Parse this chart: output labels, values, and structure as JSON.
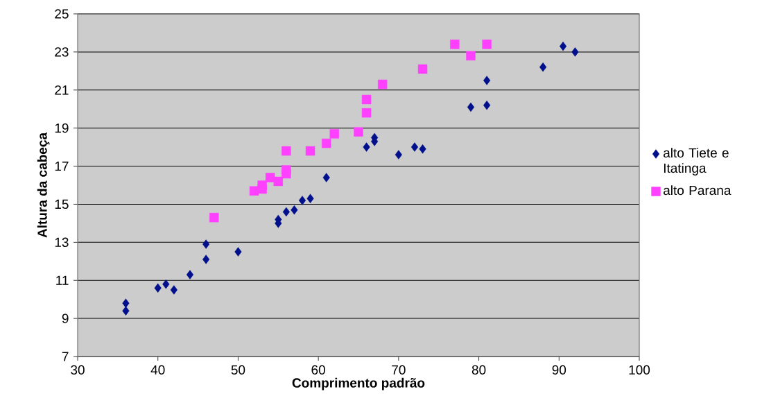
{
  "chart_data": {
    "type": "scatter",
    "xlabel": "Comprimento padrão",
    "ylabel": "Altura da cabeça",
    "xlim": [
      30,
      100
    ],
    "xticks": [
      30,
      40,
      50,
      60,
      70,
      80,
      90,
      100
    ],
    "ylim": [
      7,
      25
    ],
    "yticks": [
      7,
      9,
      11,
      13,
      15,
      17,
      19,
      21,
      23,
      25
    ],
    "grid": "y",
    "legend": "right",
    "series": [
      {
        "name": "alto Tiete e Itatinga",
        "color": "#000f8c",
        "marker": "diamond",
        "x": [
          36,
          36,
          40,
          41,
          42,
          44,
          46,
          46,
          50,
          55,
          55,
          56,
          57,
          58,
          59,
          61,
          66,
          67,
          67,
          70,
          72,
          73,
          79,
          81,
          81,
          88,
          90.5,
          92
        ],
        "values": [
          9.8,
          9.4,
          10.6,
          10.8,
          10.5,
          11.3,
          12.1,
          12.9,
          12.5,
          14.2,
          14.0,
          14.6,
          14.7,
          15.2,
          15.3,
          16.4,
          18.0,
          18.3,
          18.5,
          17.6,
          18.0,
          17.9,
          20.1,
          21.5,
          20.2,
          22.2,
          23.3,
          23.0
        ]
      },
      {
        "name": "alto Parana",
        "color": "#ff40ff",
        "marker": "square",
        "x": [
          47,
          52,
          53,
          53,
          54,
          55,
          56,
          56,
          56,
          59,
          61,
          62,
          65,
          66,
          66,
          68,
          73,
          77,
          79,
          81
        ],
        "values": [
          14.3,
          15.7,
          16.0,
          15.8,
          16.4,
          16.2,
          16.8,
          16.6,
          17.8,
          17.8,
          18.2,
          18.7,
          18.8,
          19.8,
          20.5,
          21.3,
          22.1,
          23.4,
          22.8,
          23.4
        ]
      }
    ]
  }
}
